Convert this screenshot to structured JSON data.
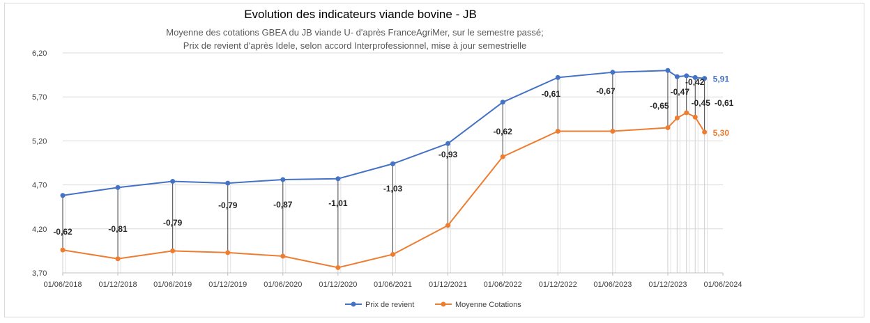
{
  "chart_data": {
    "type": "line",
    "title": "Evolution des indicateurs viande bovine - JB",
    "subtitle_lines": [
      "Moyenne des cotations GBEA du JB viande U- d'après FranceAgriMer, sur le semestre passé;",
      "Prix de revient d'après Idele, selon accord Interprofessionnel, mise à jour semestrielle"
    ],
    "y_ticks": [
      "3,70",
      "4,20",
      "4,70",
      "5,20",
      "5,70",
      "6,20"
    ],
    "ylim": [
      3.7,
      6.2
    ],
    "x_ticks": [
      {
        "date": "2018-06-01",
        "label": "01/06/2018"
      },
      {
        "date": "2018-12-01",
        "label": "01/12/2018"
      },
      {
        "date": "2019-06-01",
        "label": "01/06/2019"
      },
      {
        "date": "2019-12-01",
        "label": "01/12/2019"
      },
      {
        "date": "2020-06-01",
        "label": "01/06/2020"
      },
      {
        "date": "2020-12-01",
        "label": "01/12/2020"
      },
      {
        "date": "2021-06-01",
        "label": "01/06/2021"
      },
      {
        "date": "2021-12-01",
        "label": "01/12/2021"
      },
      {
        "date": "2022-06-01",
        "label": "01/06/2022"
      },
      {
        "date": "2022-12-01",
        "label": "01/12/2022"
      },
      {
        "date": "2023-06-01",
        "label": "01/06/2023"
      },
      {
        "date": "2023-12-01",
        "label": "01/12/2023"
      },
      {
        "date": "2024-06-01",
        "label": "01/06/2024"
      }
    ],
    "xlim": [
      "2018-06-01",
      "2024-06-01"
    ],
    "grid": true,
    "legend_position": "bottom",
    "series": [
      {
        "name": "Prix de revient",
        "color": "#4472c4",
        "end_label": "5,91",
        "points": [
          {
            "date": "2018-06-01",
            "value": 4.58
          },
          {
            "date": "2018-12-01",
            "value": 4.67
          },
          {
            "date": "2019-06-01",
            "value": 4.74
          },
          {
            "date": "2019-12-01",
            "value": 4.72
          },
          {
            "date": "2020-06-01",
            "value": 4.76
          },
          {
            "date": "2020-12-01",
            "value": 4.77
          },
          {
            "date": "2021-06-01",
            "value": 4.94
          },
          {
            "date": "2021-12-01",
            "value": 5.17
          },
          {
            "date": "2022-06-01",
            "value": 5.64
          },
          {
            "date": "2022-12-01",
            "value": 5.92
          },
          {
            "date": "2023-06-01",
            "value": 5.98
          },
          {
            "date": "2023-12-01",
            "value": 6.0
          },
          {
            "date": "2024-01-01",
            "value": 5.93
          },
          {
            "date": "2024-02-01",
            "value": 5.94
          },
          {
            "date": "2024-03-01",
            "value": 5.92
          },
          {
            "date": "2024-04-01",
            "value": 5.91
          }
        ]
      },
      {
        "name": "Moyenne Cotations",
        "color": "#ed7d31",
        "end_label": "5,30",
        "points": [
          {
            "date": "2018-06-01",
            "value": 3.96
          },
          {
            "date": "2018-12-01",
            "value": 3.86
          },
          {
            "date": "2019-06-01",
            "value": 3.95
          },
          {
            "date": "2019-12-01",
            "value": 3.93
          },
          {
            "date": "2020-06-01",
            "value": 3.89
          },
          {
            "date": "2020-12-01",
            "value": 3.76
          },
          {
            "date": "2021-06-01",
            "value": 3.91
          },
          {
            "date": "2021-12-01",
            "value": 4.24
          },
          {
            "date": "2022-06-01",
            "value": 5.02
          },
          {
            "date": "2022-12-01",
            "value": 5.31
          },
          {
            "date": "2023-06-01",
            "value": 5.31
          },
          {
            "date": "2023-12-01",
            "value": 5.35
          },
          {
            "date": "2024-01-01",
            "value": 5.46
          },
          {
            "date": "2024-02-01",
            "value": 5.52
          },
          {
            "date": "2024-03-01",
            "value": 5.47
          },
          {
            "date": "2024-04-01",
            "value": 5.3
          }
        ]
      }
    ],
    "differences": [
      {
        "date": "2018-06-01",
        "label": "-0,62"
      },
      {
        "date": "2018-12-01",
        "label": "-0,81"
      },
      {
        "date": "2019-06-01",
        "label": "-0,79"
      },
      {
        "date": "2019-12-01",
        "label": "-0,79"
      },
      {
        "date": "2020-06-01",
        "label": "-0,87"
      },
      {
        "date": "2020-12-01",
        "label": "-1,01"
      },
      {
        "date": "2021-06-01",
        "label": "-1,03"
      },
      {
        "date": "2021-12-01",
        "label": "-0,93"
      },
      {
        "date": "2022-06-01",
        "label": "-0,62"
      },
      {
        "date": "2022-12-01",
        "label": "-0,61"
      },
      {
        "date": "2023-06-01",
        "label": "-0,67"
      },
      {
        "date": "2023-12-01",
        "label": "-0,65"
      },
      {
        "date": "2024-01-01",
        "label": "-0,47"
      },
      {
        "date": "2024-02-01",
        "label": "-0,42"
      },
      {
        "date": "2024-03-01",
        "label": "-0,45"
      },
      {
        "date": "2024-04-01",
        "label": "-0,61"
      }
    ]
  }
}
